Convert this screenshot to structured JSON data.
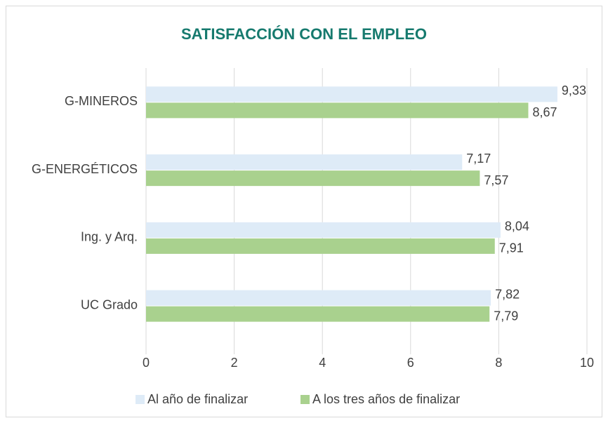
{
  "chart_data": {
    "type": "bar",
    "title": "SATISFACCIÓN CON EL EMPLEO",
    "categories": [
      "G-MINEROS",
      "G-ENERGÉTICOS",
      "Ing. y Arq.",
      "UC Grado"
    ],
    "series": [
      {
        "name": "Al año de finalizar",
        "color": "#deebf7",
        "values": [
          9.33,
          7.17,
          8.04,
          7.82
        ],
        "value_labels": [
          "9,33",
          "7,17",
          "8,04",
          "7,82"
        ]
      },
      {
        "name": "A los tres años de finalizar",
        "color": "#a9d18e",
        "values": [
          8.67,
          7.57,
          7.91,
          7.79
        ],
        "value_labels": [
          "8,67",
          "7,57",
          "7,91",
          "7,79"
        ]
      }
    ],
    "xlim": [
      0,
      10
    ],
    "xticks": [
      0,
      2,
      4,
      6,
      8,
      10
    ],
    "grid": true,
    "legend": "bottom"
  }
}
